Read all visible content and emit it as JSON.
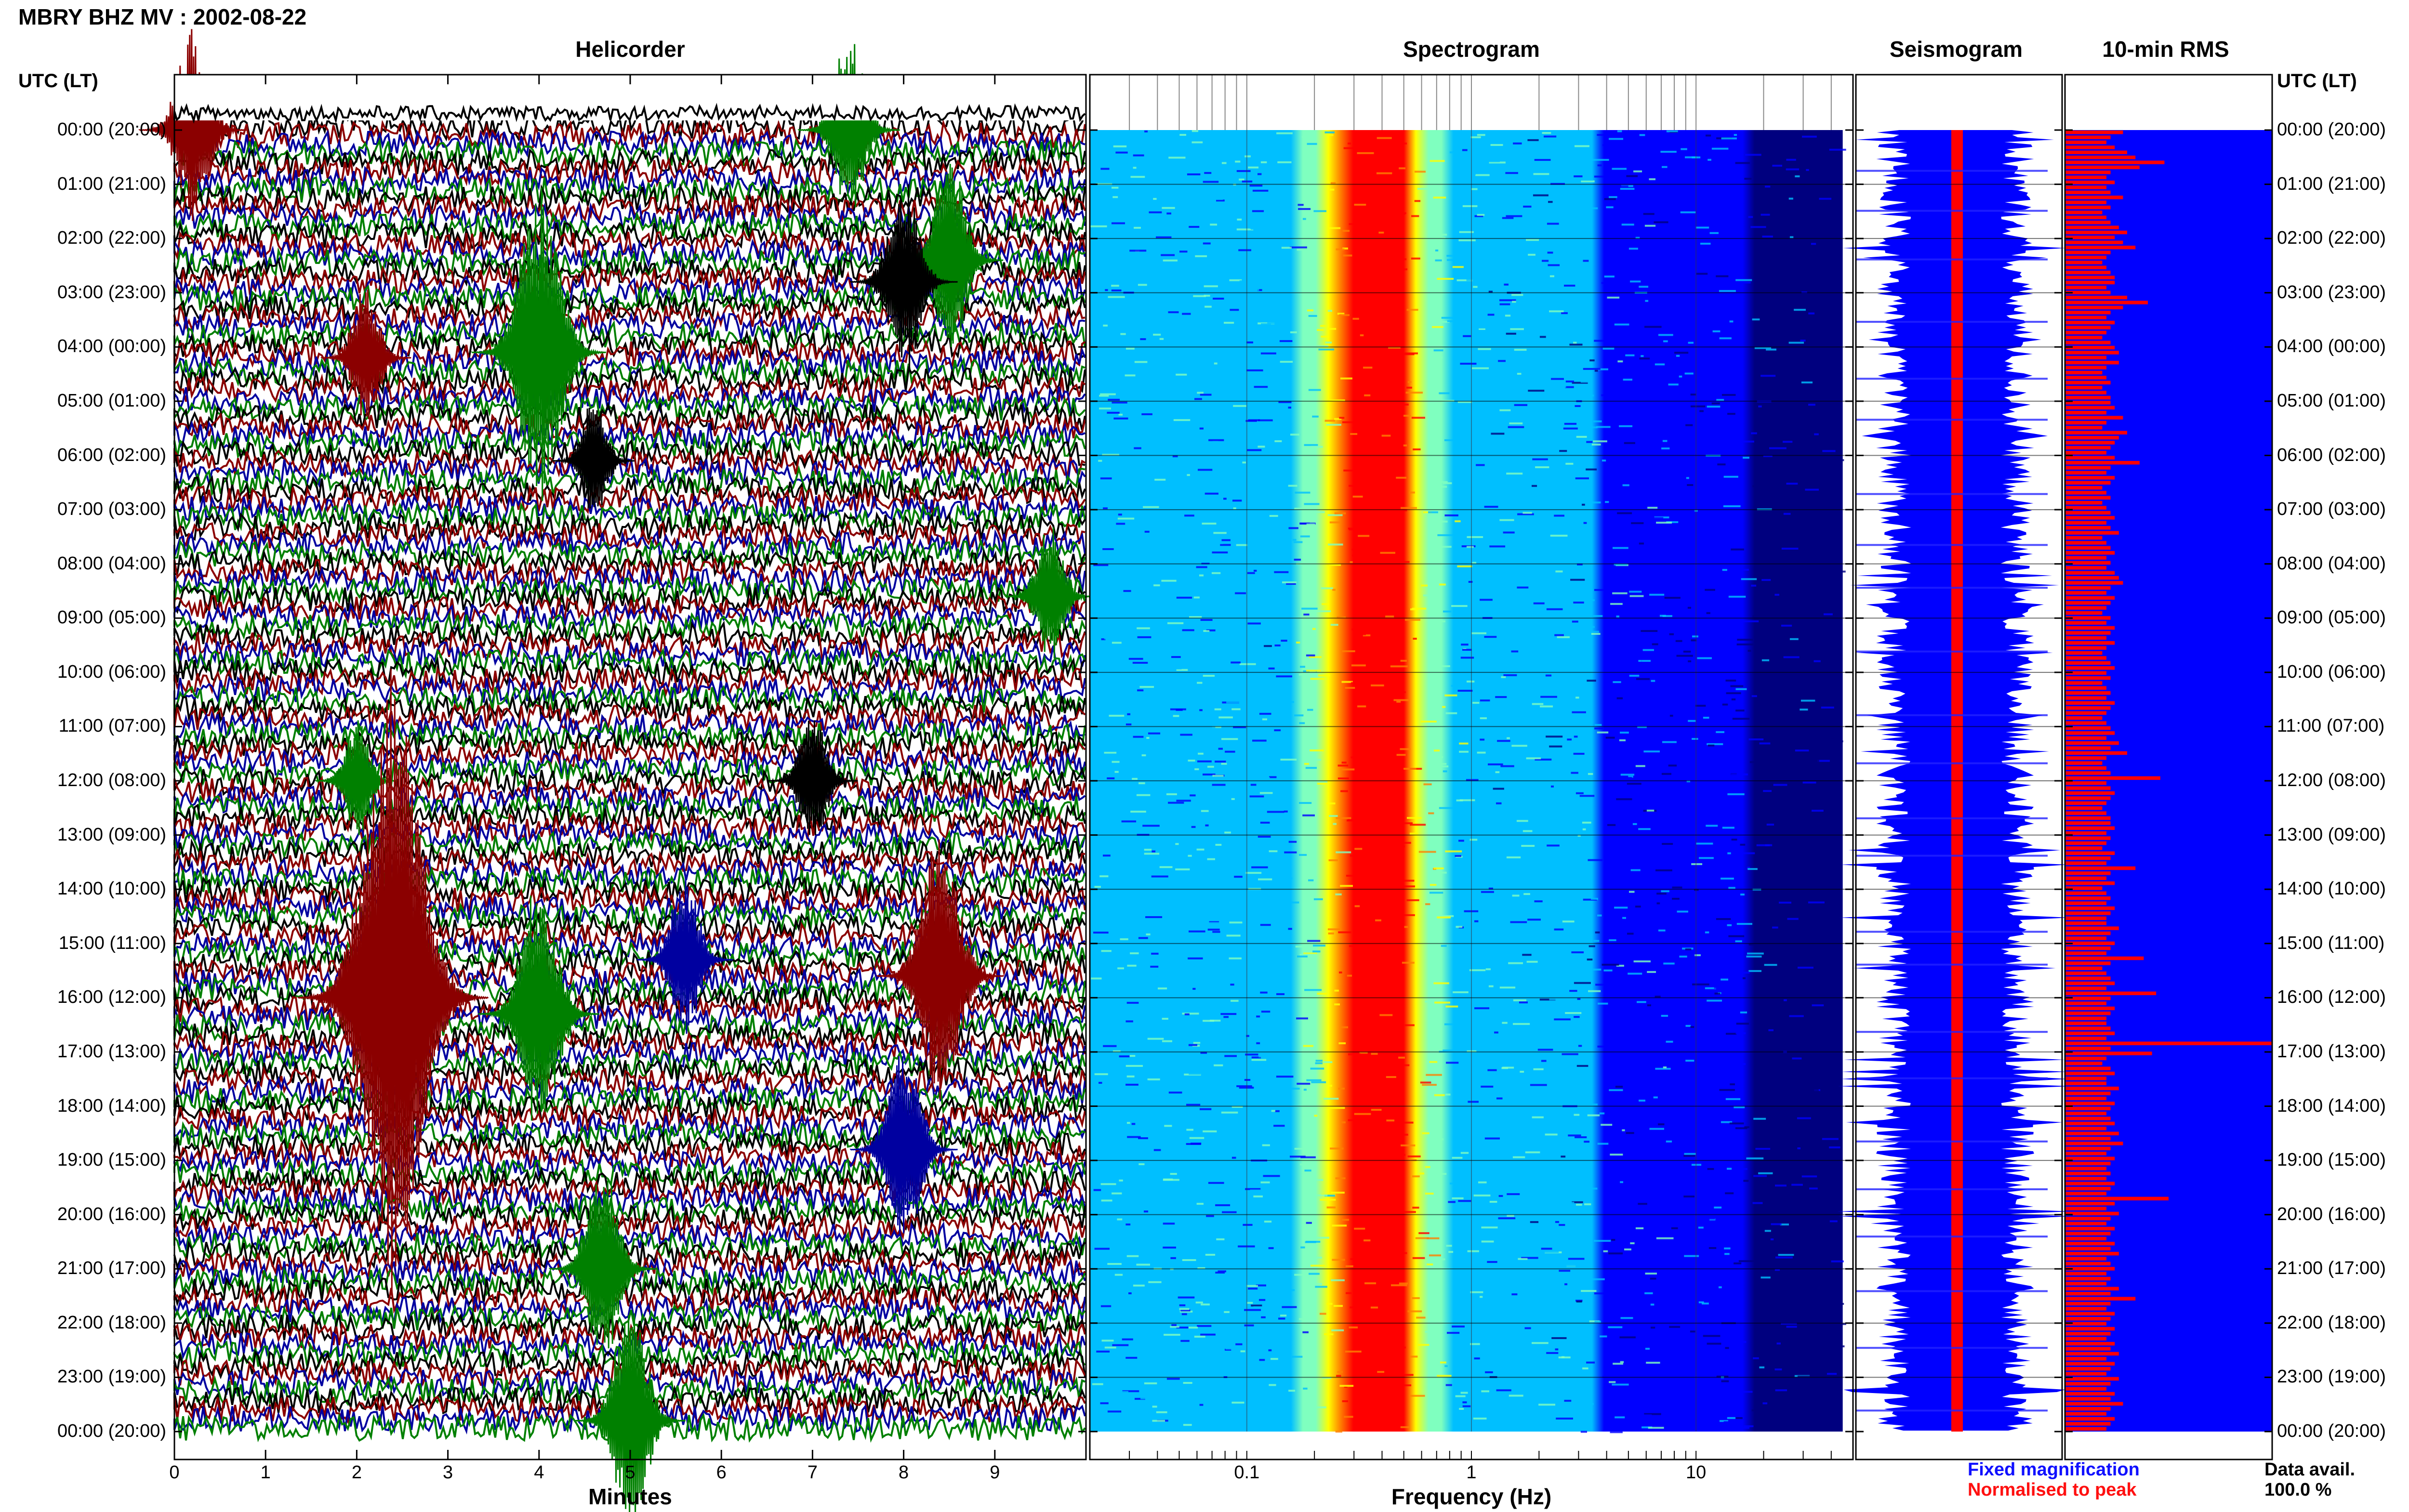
{
  "title": "MBRY BHZ MV : 2002-08-22",
  "utc_header": "UTC (LT)",
  "panels": {
    "helicorder": "Helicorder",
    "spectrogram": "Spectrogram",
    "seismogram": "Seismogram",
    "rms": "10-min RMS"
  },
  "legend": {
    "fixed": "Fixed magnification",
    "normalised": "Normalised to peak",
    "fixed_color": "#1010ff",
    "normalised_color": "#ff1010"
  },
  "availability": {
    "label": "Data avail.",
    "value": "100.0 %"
  },
  "chart_data": [
    {
      "type": "line",
      "name": "helicorder",
      "title": "Helicorder",
      "xlabel": "Minutes",
      "xlim": [
        0,
        10
      ],
      "x_ticks": [
        "0",
        "1",
        "2",
        "3",
        "4",
        "5",
        "6",
        "7",
        "8",
        "9"
      ],
      "y_ticks": [
        "00:00 (20:00)",
        "01:00 (21:00)",
        "02:00 (22:00)",
        "03:00 (23:00)",
        "04:00 (00:00)",
        "05:00 (01:00)",
        "06:00 (02:00)",
        "07:00 (03:00)",
        "08:00 (04:00)",
        "09:00 (05:00)",
        "10:00 (06:00)",
        "11:00 (07:00)",
        "12:00 (08:00)",
        "13:00 (09:00)",
        "14:00 (10:00)",
        "15:00 (11:00)",
        "16:00 (12:00)",
        "17:00 (13:00)",
        "18:00 (14:00)",
        "19:00 (15:00)",
        "20:00 (16:00)",
        "21:00 (17:00)",
        "22:00 (18:00)",
        "23:00 (19:00)",
        "00:00 (20:00)"
      ],
      "trace_colors": [
        "#000000",
        "#8b0000",
        "#0000a0",
        "#008000"
      ],
      "events": [
        {
          "hour": 0.0,
          "minute": 0.2,
          "amp": 1.0,
          "color": "#8b0000"
        },
        {
          "hour": 0.0,
          "minute": 7.4,
          "amp": 0.9,
          "color": "#008000"
        },
        {
          "hour": 2.4,
          "minute": 8.5,
          "amp": 1.0,
          "color": "#008000"
        },
        {
          "hour": 2.8,
          "minute": 8.0,
          "amp": 1.0,
          "color": "#000000"
        },
        {
          "hour": 4.1,
          "minute": 4.0,
          "amp": 1.6,
          "color": "#008000"
        },
        {
          "hour": 4.2,
          "minute": 2.1,
          "amp": 0.7,
          "color": "#8b0000"
        },
        {
          "hour": 6.1,
          "minute": 4.6,
          "amp": 0.6,
          "color": "#000000"
        },
        {
          "hour": 8.6,
          "minute": 9.6,
          "amp": 0.7,
          "color": "#008000"
        },
        {
          "hour": 12.0,
          "minute": 7.0,
          "amp": 0.7,
          "color": "#000000"
        },
        {
          "hour": 12.0,
          "minute": 2.0,
          "amp": 0.6,
          "color": "#008000"
        },
        {
          "hour": 16.0,
          "minute": 2.4,
          "amp": 3.2,
          "color": "#8b0000"
        },
        {
          "hour": 15.6,
          "minute": 8.4,
          "amp": 1.4,
          "color": "#8b0000"
        },
        {
          "hour": 15.3,
          "minute": 5.6,
          "amp": 0.8,
          "color": "#0000a0"
        },
        {
          "hour": 16.3,
          "minute": 4.0,
          "amp": 1.3,
          "color": "#008000"
        },
        {
          "hour": 18.8,
          "minute": 8.0,
          "amp": 1.0,
          "color": "#0000a0"
        },
        {
          "hour": 21.0,
          "minute": 4.7,
          "amp": 1.0,
          "color": "#008000"
        },
        {
          "hour": 23.8,
          "minute": 5.0,
          "amp": 1.1,
          "color": "#008000"
        }
      ]
    },
    {
      "type": "heatmap",
      "name": "spectrogram",
      "title": "Spectrogram",
      "xlabel": "Frequency (Hz)",
      "x_scale": "log",
      "xlim": [
        0.02,
        50
      ],
      "x_ticks": [
        0.1,
        1,
        10
      ],
      "x_tick_labels": [
        "0.1",
        "1",
        "10"
      ],
      "peak_band_hz": [
        0.25,
        0.6
      ],
      "colormap": [
        "#00007f",
        "#0000ff",
        "#00bfff",
        "#7fffbf",
        "#ffff00",
        "#ff7f00",
        "#ff0000"
      ]
    },
    {
      "type": "line",
      "name": "seismogram",
      "title": "Seismogram",
      "series": [
        {
          "name": "Fixed magnification",
          "color": "#0000ff"
        },
        {
          "name": "Normalised to peak",
          "color": "#ff0000"
        }
      ]
    },
    {
      "type": "bar",
      "name": "rms",
      "title": "10-min RMS",
      "orientation": "horizontal",
      "bins_per_hour": 6,
      "series": [
        {
          "name": "Fixed magnification",
          "color": "#0000ff",
          "values_normalised": 1.0
        },
        {
          "name": "Normalised to peak",
          "color": "#ff0000",
          "values": [
            0.28,
            0.22,
            0.2,
            0.24,
            0.3,
            0.34,
            0.48,
            0.36,
            0.22,
            0.2,
            0.24,
            0.2,
            0.22,
            0.28,
            0.2,
            0.22,
            0.18,
            0.2,
            0.22,
            0.26,
            0.3,
            0.24,
            0.28,
            0.34,
            0.22,
            0.2,
            0.18,
            0.2,
            0.22,
            0.24,
            0.24,
            0.2,
            0.22,
            0.3,
            0.4,
            0.28,
            0.22,
            0.2,
            0.24,
            0.22,
            0.2,
            0.18,
            0.22,
            0.24,
            0.26,
            0.2,
            0.26,
            0.2,
            0.18,
            0.2,
            0.22,
            0.18,
            0.2,
            0.22,
            0.22,
            0.24,
            0.2,
            0.28,
            0.2,
            0.18,
            0.3,
            0.26,
            0.24,
            0.22,
            0.2,
            0.24,
            0.36,
            0.22,
            0.2,
            0.24,
            0.22,
            0.18,
            0.2,
            0.22,
            0.18,
            0.2,
            0.22,
            0.24,
            0.2,
            0.22,
            0.26,
            0.18,
            0.2,
            0.22,
            0.24,
            0.2,
            0.22,
            0.2,
            0.24,
            0.26,
            0.28,
            0.22,
            0.2,
            0.24,
            0.22,
            0.2,
            0.18,
            0.22,
            0.2,
            0.24,
            0.22,
            0.2,
            0.24,
            0.2,
            0.18,
            0.2,
            0.22,
            0.24,
            0.2,
            0.22,
            0.18,
            0.2,
            0.22,
            0.2,
            0.24,
            0.22,
            0.2,
            0.18,
            0.2,
            0.22,
            0.24,
            0.2,
            0.26,
            0.22,
            0.3,
            0.2,
            0.18,
            0.2,
            0.22,
            0.46,
            0.2,
            0.22,
            0.24,
            0.22,
            0.2,
            0.18,
            0.2,
            0.22,
            0.22,
            0.24,
            0.2,
            0.22,
            0.2,
            0.18,
            0.24,
            0.22,
            0.2,
            0.34,
            0.22,
            0.2,
            0.24,
            0.18,
            0.2,
            0.22,
            0.2,
            0.24,
            0.22,
            0.2,
            0.2,
            0.26,
            0.22,
            0.2,
            0.24,
            0.22,
            0.2,
            0.38,
            0.22,
            0.18,
            0.2,
            0.22,
            0.24,
            0.2,
            0.44,
            0.22,
            0.2,
            0.24,
            0.22,
            0.2,
            0.2,
            0.22,
            0.24,
            0.2,
            1.0,
            0.22,
            0.42,
            0.2,
            0.18,
            0.22,
            0.24,
            0.2,
            0.2,
            0.26,
            0.22,
            0.2,
            0.24,
            0.22,
            0.2,
            0.22,
            0.24,
            0.2,
            0.26,
            0.22,
            0.28,
            0.22,
            0.2,
            0.24,
            0.22,
            0.2,
            0.22,
            0.2,
            0.24,
            0.22,
            0.2,
            0.5,
            0.24,
            0.2,
            0.26,
            0.22,
            0.2,
            0.24,
            0.22,
            0.2,
            0.24,
            0.22,
            0.26,
            0.2,
            0.22,
            0.24,
            0.2,
            0.22,
            0.2,
            0.26,
            0.22,
            0.34,
            0.22,
            0.2,
            0.24,
            0.22,
            0.2,
            0.24,
            0.22,
            0.2,
            0.24,
            0.22,
            0.26,
            0.2,
            0.24,
            0.22,
            0.2,
            0.26,
            0.22,
            0.2,
            0.24,
            0.22,
            0.28,
            0.22,
            0.2,
            0.24,
            0.22,
            0.2
          ]
        }
      ]
    }
  ]
}
